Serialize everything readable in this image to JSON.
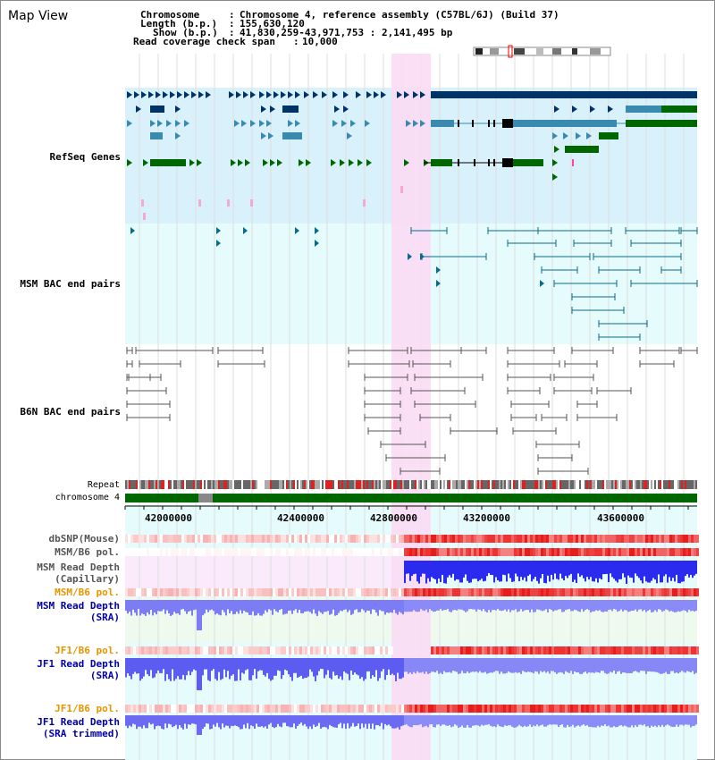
{
  "window": {
    "title": "Map View"
  },
  "header": {
    "lines": [
      {
        "key": "Chromosome",
        "sep": ":",
        "value": "Chromosome 4, reference assembly (C57BL/6J) (Build 37)"
      },
      {
        "key": "Length (b.p.)",
        "sep": ":",
        "value": "155,630,120"
      },
      {
        "key": "Show (b.p.)",
        "sep": ":",
        "value": "41,830,259-43,971,753 : 2,141,495 bp"
      },
      {
        "key": "Read coverage check span",
        "sep": ":",
        "value": "10,000"
      }
    ]
  },
  "tracks": {
    "refseq": {
      "label": "RefSeq Genes",
      "color": "#0000aa"
    },
    "msm_bac": {
      "label": "MSM BAC end pairs",
      "color": "#006a8a"
    },
    "b6n_bac": {
      "label": "B6N BAC end pairs",
      "color": "#555555"
    },
    "repeat": {
      "label": "Repeat"
    },
    "chromosome": {
      "label": "chromosome 4"
    },
    "dbsnp": {
      "label": "dbSNP(Mouse)",
      "color": "#555555"
    },
    "msm_b6_pol_1": {
      "label": "MSM/B6 pol.",
      "color": "#555555"
    },
    "msm_read_depth_cap": {
      "label": "MSM Read Depth\n(Capillary)",
      "color": "#555555"
    },
    "msm_b6_pol_2": {
      "label": "MSM/B6 pol.",
      "color": "#e69500"
    },
    "msm_read_depth_sra": {
      "label": "MSM Read Depth\n(SRA)",
      "color": "#0000aa"
    },
    "jf1_b6_pol_1": {
      "label": "JF1/B6 pol.",
      "color": "#e69500"
    },
    "jf1_read_depth_sra": {
      "label": "JF1 Read Depth\n(SRA)",
      "color": "#0000aa"
    },
    "jf1_b6_pol_2": {
      "label": "JF1/B6 pol.",
      "color": "#e69500"
    },
    "jf1_read_depth_trim": {
      "label": "JF1 Read Depth\n(SRA trimmed)",
      "color": "#0000aa"
    }
  },
  "axis": {
    "ticks": [
      "42000000",
      "42400000",
      "42800000",
      "43200000",
      "43600000"
    ]
  },
  "colors": {
    "refseq_bg": "#d9f1fb",
    "msm_bg": "#e6fcfc",
    "highlight": "#fadcf4",
    "gene_dark": "#003366",
    "gene_teal": "#3a8ab0",
    "gene_green": "#006600",
    "chrom_green": "#006600",
    "depth_blue": "#3333ff",
    "pol_red": "#ee2222"
  }
}
